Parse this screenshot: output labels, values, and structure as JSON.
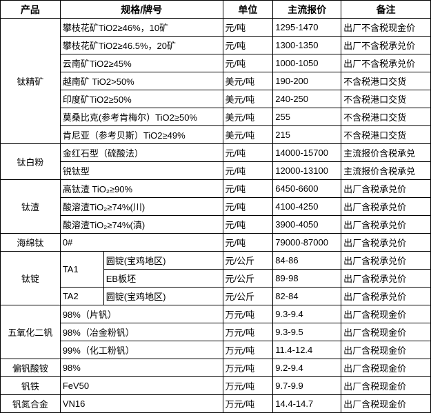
{
  "header": {
    "product": "产品",
    "spec": "规格/牌号",
    "unit": "单位",
    "price": "主流报价",
    "note": "备注"
  },
  "groups": [
    {
      "product": "钛精矿",
      "rows": [
        {
          "spec": "攀枝花矿TiO2≥46%，10矿",
          "unit": "元/吨",
          "price": "1295-1470",
          "note": "出厂不含税现金价"
        },
        {
          "spec": "攀枝花矿TiO2≥46.5%，20矿",
          "unit": "元/吨",
          "price": "1300-1350",
          "note": "出厂不含税承兑价"
        },
        {
          "spec": "云南矿TiO2≥45%",
          "unit": "元/吨",
          "price": "1000-1050",
          "note": "出厂不含税承兑价"
        },
        {
          "spec": "越南矿 TiO2>50%",
          "unit": "美元/吨",
          "price": "190-200",
          "note": "不含税港口交货"
        },
        {
          "spec": "印度矿TiO2≥50%",
          "unit": "美元/吨",
          "price": "240-250",
          "note": "不含税港口交货"
        },
        {
          "spec": "莫桑比克(参考肯梅尔）TiO2≥50%",
          "unit": "美元/吨",
          "price": "255",
          "note": "不含税港口交货"
        },
        {
          "spec": "肯尼亚（参考贝斯）TiO2≥49%",
          "unit": "美元/吨",
          "price": "215",
          "note": "不含税港口交货"
        }
      ]
    },
    {
      "product": "钛白粉",
      "rows": [
        {
          "spec": "金红石型（硫酸法）",
          "unit": "元/吨",
          "price": "14000-15700",
          "note": "主流报价含税承兑"
        },
        {
          "spec": "锐钛型",
          "unit": "元/吨",
          "price": "12000-13100",
          "note": "主流报价含税承兑"
        }
      ]
    },
    {
      "product": "钛渣",
      "rows": [
        {
          "spec": "高钛渣 TiO₂≥90%",
          "unit": "元/吨",
          "price": "6450-6600",
          "note": "出厂含税承兑价"
        },
        {
          "spec": "酸溶渣TiO₂≥74%(川)",
          "unit": "元/吨",
          "price": "4100-4250",
          "note": "出厂含税承兑价"
        },
        {
          "spec": "酸溶渣TiO₂≥74%(滇)",
          "unit": "元/吨",
          "price": "3900-4050",
          "note": "出厂含税承兑价"
        }
      ]
    },
    {
      "product": "海绵钛",
      "rows": [
        {
          "spec": "0#",
          "unit": "元/吨",
          "price": "79000-87000",
          "note": "出厂含税承兑价"
        }
      ]
    },
    {
      "product": "钛锭",
      "rows": [
        {
          "grade": "TA1",
          "sub": "圆锭(宝鸡地区)",
          "unit": "元/公斤",
          "price": "84-86",
          "note": "出厂含税承兑价"
        },
        {
          "grade": "TA1",
          "sub": "EB板坯",
          "unit": "元/公斤",
          "price": "89-98",
          "note": "出厂含税承兑价"
        },
        {
          "grade": "TA2",
          "sub": "圆锭(宝鸡地区)",
          "unit": "元/公斤",
          "price": "82-84",
          "note": "出厂含税承兑价"
        }
      ]
    },
    {
      "product": "五氧化二钒",
      "rows": [
        {
          "spec": "98%（片钒）",
          "unit": "万元/吨",
          "price": "9.3-9.4",
          "note": "出厂含税现金价"
        },
        {
          "spec": "98%（冶金粉钒）",
          "unit": "万元/吨",
          "price": "9.3-9.5",
          "note": "出厂含税现金价"
        },
        {
          "spec": "99%（化工粉钒）",
          "unit": "万元/吨",
          "price": "11.4-12.4",
          "note": "出厂含税现金价"
        }
      ]
    },
    {
      "product": "偏钒酸铵",
      "rows": [
        {
          "spec": "98%",
          "unit": "万元/吨",
          "price": "9.2-9.4",
          "note": "出厂含税现金价"
        }
      ]
    },
    {
      "product": "钒铁",
      "rows": [
        {
          "spec": "FeV50",
          "unit": "万元/吨",
          "price": "9.7-9.9",
          "note": "出厂含税现金价"
        }
      ]
    },
    {
      "product": "钒氮合金",
      "rows": [
        {
          "spec": "VN16",
          "unit": "万元/吨",
          "price": "14.4-14.7",
          "note": "出厂含税现金价"
        }
      ]
    }
  ]
}
